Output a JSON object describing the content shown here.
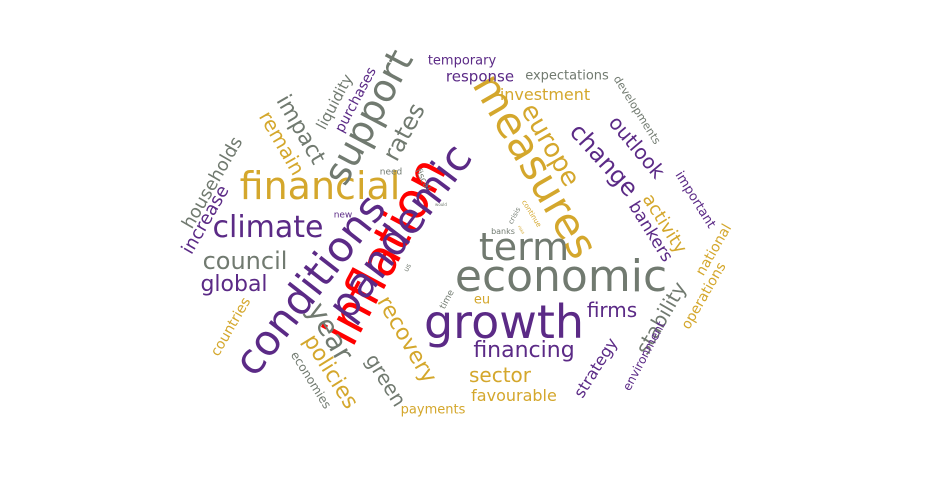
{
  "palette": {
    "purple": "#5b2a86",
    "gold": "#d4a72c",
    "gray": "#717a70",
    "red": "#ff0000",
    "lightgray": "#b0b0b0"
  },
  "words": [
    {
      "text": "inflation",
      "color": "red"
    },
    {
      "text": "growth",
      "color": "purple"
    },
    {
      "text": "economic",
      "color": "gray"
    },
    {
      "text": "term",
      "color": "gray"
    },
    {
      "text": "measures",
      "color": "gold"
    },
    {
      "text": "pandemic",
      "color": "purple"
    },
    {
      "text": "conditions",
      "color": "purple"
    },
    {
      "text": "financial",
      "color": "gold"
    },
    {
      "text": "support",
      "color": "gray"
    },
    {
      "text": "climate",
      "color": "purple"
    },
    {
      "text": "europe",
      "color": "gold"
    },
    {
      "text": "change",
      "color": "purple"
    },
    {
      "text": "outlook",
      "color": "purple"
    },
    {
      "text": "rates",
      "color": "gray"
    },
    {
      "text": "impact",
      "color": "gray"
    },
    {
      "text": "remain",
      "color": "gold"
    },
    {
      "text": "council",
      "color": "gray"
    },
    {
      "text": "global",
      "color": "purple"
    },
    {
      "text": "year",
      "color": "gray"
    },
    {
      "text": "recovery",
      "color": "gold"
    },
    {
      "text": "policies",
      "color": "gold"
    },
    {
      "text": "green",
      "color": "gray"
    },
    {
      "text": "financing",
      "color": "purple"
    },
    {
      "text": "sector",
      "color": "gold"
    },
    {
      "text": "firms",
      "color": "purple"
    },
    {
      "text": "stability",
      "color": "gray"
    },
    {
      "text": "favourable",
      "color": "gold"
    },
    {
      "text": "strategy",
      "color": "purple"
    },
    {
      "text": "payments",
      "color": "gold"
    },
    {
      "text": "investment",
      "color": "gold"
    },
    {
      "text": "response",
      "color": "purple"
    },
    {
      "text": "expectations",
      "color": "gray"
    },
    {
      "text": "temporary",
      "color": "purple"
    },
    {
      "text": "liquidity",
      "color": "gray"
    },
    {
      "text": "purchases",
      "color": "purple"
    },
    {
      "text": "households",
      "color": "gray"
    },
    {
      "text": "increase",
      "color": "purple"
    },
    {
      "text": "countries",
      "color": "gold"
    },
    {
      "text": "economies",
      "color": "gray"
    },
    {
      "text": "activity",
      "color": "gold"
    },
    {
      "text": "bankers",
      "color": "purple"
    },
    {
      "text": "national",
      "color": "gold"
    },
    {
      "text": "operations",
      "color": "gold"
    },
    {
      "text": "environment",
      "color": "purple"
    },
    {
      "text": "important",
      "color": "purple"
    },
    {
      "text": "developments",
      "color": "gray"
    },
    {
      "text": "eu",
      "color": "gold"
    },
    {
      "text": "fiscal",
      "color": "gray"
    },
    {
      "text": "need",
      "color": "gray"
    },
    {
      "text": "new",
      "color": "purple"
    },
    {
      "text": "time",
      "color": "gray"
    },
    {
      "text": "banks",
      "color": "gray"
    },
    {
      "text": "crisis",
      "color": "gray"
    },
    {
      "text": "continue",
      "color": "gold"
    },
    {
      "text": "us",
      "color": "gray"
    },
    {
      "text": "would",
      "color": "gray"
    },
    {
      "text": "risks",
      "color": "gold"
    }
  ]
}
